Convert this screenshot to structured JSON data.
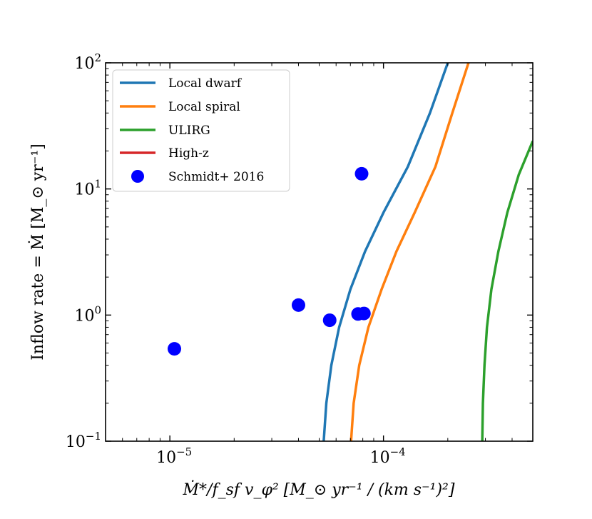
{
  "chart_data": {
    "type": "line",
    "x_scale": "log",
    "y_scale": "log",
    "xlim": [
      5e-06,
      0.0005
    ],
    "ylim": [
      0.1,
      100
    ],
    "xlabel": "Ṁ*/f_sf v_φ² [M_⊙ yr⁻¹ / (km s⁻¹)²]",
    "ylabel": "Inflow rate = Ṁ [M_⊙ yr⁻¹]",
    "x_ticks": [
      {
        "value": 1e-05,
        "base": "10",
        "exp": "−5"
      },
      {
        "value": 0.0001,
        "base": "10",
        "exp": "−4"
      }
    ],
    "y_ticks": [
      {
        "value": 0.1,
        "base": "10",
        "exp": "−1"
      },
      {
        "value": 1,
        "base": "10",
        "exp": "0"
      },
      {
        "value": 10,
        "base": "10",
        "exp": "1"
      },
      {
        "value": 100,
        "base": "10",
        "exp": "2"
      }
    ],
    "legend_position": "top-left",
    "series": [
      {
        "name": "Local dwarf",
        "color": "#1f77b4",
        "x": [
          5.25e-05,
          5.4e-05,
          5.7e-05,
          6.2e-05,
          7e-05,
          8.2e-05,
          0.0001,
          0.00013,
          0.000165,
          0.0002
        ],
        "y": [
          0.1,
          0.2,
          0.4,
          0.8,
          1.6,
          3.2,
          6.5,
          15,
          40,
          100
        ]
      },
      {
        "name": "Local spiral",
        "color": "#ff7f0e",
        "x": [
          7.05e-05,
          7.25e-05,
          7.7e-05,
          8.5e-05,
          9.8e-05,
          0.000115,
          0.00014,
          0.000175,
          0.00021,
          0.00025
        ],
        "y": [
          0.1,
          0.2,
          0.4,
          0.8,
          1.6,
          3.2,
          6.5,
          15,
          40,
          100
        ]
      },
      {
        "name": "ULIRG",
        "color": "#2ca02c",
        "x": [
          0.00029,
          0.000292,
          0.000297,
          0.000305,
          0.00032,
          0.000345,
          0.00038,
          0.00043,
          0.0005
        ],
        "y": [
          0.1,
          0.2,
          0.4,
          0.8,
          1.6,
          3.2,
          6.5,
          13,
          24
        ]
      },
      {
        "name": "High-z",
        "color": "#d62728",
        "x": [],
        "y": []
      }
    ],
    "scatter": {
      "name": "Schmidt+ 2016",
      "color": "#0000ff",
      "points": [
        {
          "x": 1.05e-05,
          "y": 0.54
        },
        {
          "x": 4e-05,
          "y": 1.2
        },
        {
          "x": 5.6e-05,
          "y": 0.91
        },
        {
          "x": 7.6e-05,
          "y": 1.02
        },
        {
          "x": 8.1e-05,
          "y": 1.03
        },
        {
          "x": 7.9e-05,
          "y": 13.2
        }
      ]
    }
  }
}
